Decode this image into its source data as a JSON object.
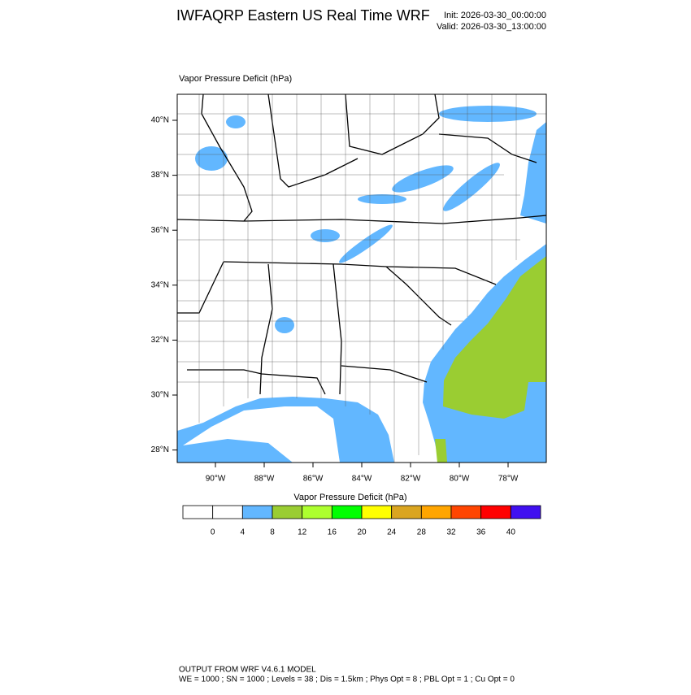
{
  "header": {
    "title": "IWFAQRP Eastern US Real Time WRF",
    "init": "Init: 2026-03-30_00:00:00",
    "valid": "Valid: 2026-03-30_13:00:00"
  },
  "map": {
    "label": "Vapor Pressure Deficit   (hPa)",
    "lat_ticks": [
      {
        "value": 40,
        "label": "40°N"
      },
      {
        "value": 38,
        "label": "38°N"
      },
      {
        "value": 36,
        "label": "36°N"
      },
      {
        "value": 34,
        "label": "34°N"
      },
      {
        "value": 32,
        "label": "32°N"
      },
      {
        "value": 30,
        "label": "30°N"
      },
      {
        "value": 28,
        "label": "28°N"
      }
    ],
    "lon_ticks": [
      {
        "value": -90,
        "label": "90°W"
      },
      {
        "value": -88,
        "label": "88°W"
      },
      {
        "value": -86,
        "label": "86°W"
      },
      {
        "value": -84,
        "label": "84°W"
      },
      {
        "value": -82,
        "label": "82°W"
      },
      {
        "value": -80,
        "label": "80°W"
      },
      {
        "value": -78,
        "label": "78°W"
      }
    ]
  },
  "colorbar": {
    "title": "Vapor Pressure Deficit  (hPa)",
    "colors": [
      "#ffffff",
      "#ffffff",
      "#62b7ff",
      "#9acd32",
      "#adff2f",
      "#00ff00",
      "#ffff00",
      "#daa520",
      "#ffa500",
      "#ff4500",
      "#ff0000",
      "#4010f0"
    ],
    "labels": [
      {
        "value": 0,
        "label": "0"
      },
      {
        "value": 4,
        "label": "4"
      },
      {
        "value": 8,
        "label": "8"
      },
      {
        "value": 12,
        "label": "12"
      },
      {
        "value": 16,
        "label": "16"
      },
      {
        "value": 20,
        "label": "20"
      },
      {
        "value": 24,
        "label": "24"
      },
      {
        "value": 28,
        "label": "28"
      },
      {
        "value": 32,
        "label": "32"
      },
      {
        "value": 36,
        "label": "36"
      },
      {
        "value": 40,
        "label": "40"
      }
    ]
  },
  "footer": {
    "line1": "OUTPUT FROM WRF V4.6.1 MODEL",
    "line2": "WE = 1000 ; SN = 1000 ; Levels = 38 ; Dis = 1.5km ; Phys Opt = 8 ; PBL Opt = 1 ; Cu Opt = 0"
  }
}
